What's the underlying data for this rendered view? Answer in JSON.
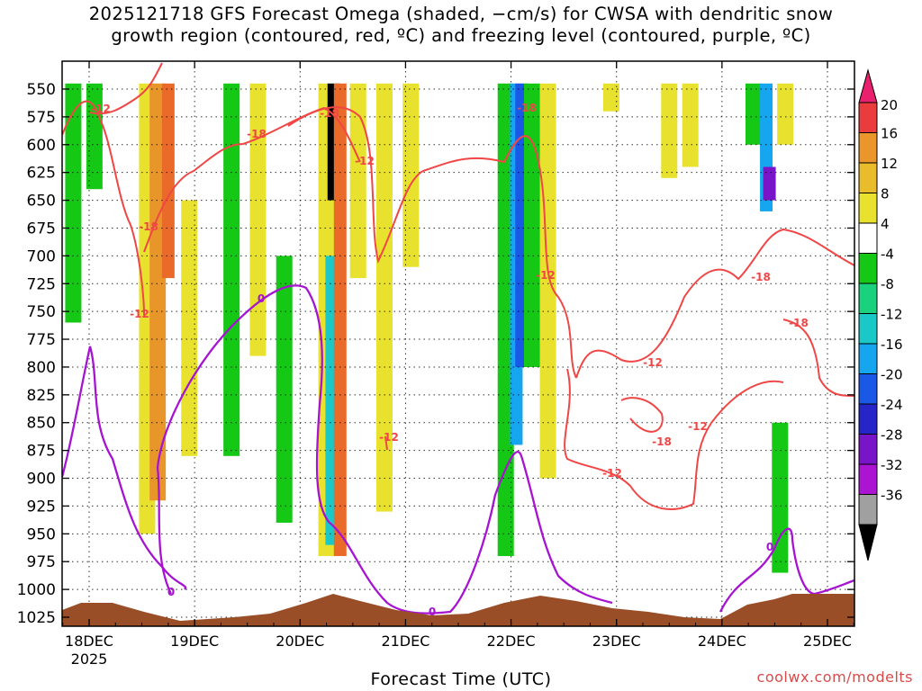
{
  "title": {
    "line1": "2025121718 GFS Forecast Omega (shaded, −cm/s) for CWSA with dendritic snow",
    "line2": "growth region (contoured, red, ºC) and freezing level (contoured, purple, ºC)"
  },
  "credit": "coolwx.com/modelts",
  "chart_data": {
    "type": "heatmap",
    "xlabel": "Forecast Time (UTC)",
    "ylabel": "",
    "y_ticks": [
      "550",
      "575",
      "600",
      "625",
      "650",
      "675",
      "700",
      "725",
      "750",
      "775",
      "800",
      "825",
      "850",
      "875",
      "900",
      "925",
      "950",
      "975",
      "1000",
      "1025"
    ],
    "y_tick_values": [
      550,
      575,
      600,
      625,
      650,
      675,
      700,
      725,
      750,
      775,
      800,
      825,
      850,
      875,
      900,
      925,
      950,
      975,
      1000,
      1025
    ],
    "ylim": [
      1035,
      540
    ],
    "y_axis_reversed": true,
    "x_ticks": [
      "18DEC",
      "19DEC",
      "20DEC",
      "21DEC",
      "22DEC",
      "23DEC",
      "24DEC",
      "25DEC"
    ],
    "x_tick_values_days": [
      0,
      1,
      2,
      3,
      4,
      5,
      6,
      7
    ],
    "x_year_label": "2025",
    "xlim_days": [
      -0.25,
      7.25
    ],
    "grid": true,
    "colorbar": {
      "labels": [
        "20",
        "16",
        "12",
        "8",
        "4",
        "-4",
        "-8",
        "-12",
        "-16",
        "-20",
        "-24",
        "-28",
        "-32",
        "-36"
      ],
      "colors": [
        "#e8e22e",
        "#e8bc2a",
        "#e8962a",
        "#ea6a2a",
        "#ea3c3c",
        "#ffffff",
        "#16c816",
        "#1ad27e",
        "#1ac8c8",
        "#16a6f0",
        "#1a58e6",
        "#2626c8",
        "#7a14c8",
        "#aa14d2"
      ],
      "top_color": "#e8206e",
      "bottom_color": "#000000",
      "gray_color": "#a0a0a0"
    },
    "contour_labels": {
      "red": [
        "-12",
        "-18",
        "-12",
        "-18",
        "-12",
        "-18",
        "-12",
        "-18",
        "-18",
        "-12",
        "-12",
        "-18",
        "-12",
        "-18",
        "-12"
      ],
      "purple": [
        "0",
        "0",
        "0",
        "0"
      ]
    },
    "shaded_regions_note": "Omega shading, -cm/s; positive values (yellow/orange) and negative (green/blue/purple) columns",
    "omega_columns": [
      {
        "day": -0.15,
        "top": 545,
        "bottom": 760,
        "value": -6
      },
      {
        "day": 0.05,
        "top": 545,
        "bottom": 640,
        "value": -6
      },
      {
        "day": 0.55,
        "top": 545,
        "bottom": 950,
        "value": 6
      },
      {
        "day": 0.65,
        "top": 545,
        "bottom": 920,
        "value": 10
      },
      {
        "day": 0.75,
        "top": 545,
        "bottom": 720,
        "value": 14
      },
      {
        "day": 0.95,
        "top": 650,
        "bottom": 880,
        "value": 6
      },
      {
        "day": 1.35,
        "top": 545,
        "bottom": 880,
        "value": -6
      },
      {
        "day": 1.6,
        "top": 545,
        "bottom": 790,
        "value": 6
      },
      {
        "day": 1.85,
        "top": 700,
        "bottom": 940,
        "value": -6
      },
      {
        "day": 2.25,
        "top": 545,
        "bottom": 970,
        "value": 6
      },
      {
        "day": 2.3,
        "top": 700,
        "bottom": 960,
        "value": -14
      },
      {
        "day": 2.32,
        "top": 545,
        "bottom": 650,
        "value": -36
      },
      {
        "day": 2.38,
        "top": 545,
        "bottom": 970,
        "value": 12
      },
      {
        "day": 2.55,
        "top": 545,
        "bottom": 720,
        "value": 6
      },
      {
        "day": 2.8,
        "top": 545,
        "bottom": 930,
        "value": 6
      },
      {
        "day": 3.05,
        "top": 545,
        "bottom": 710,
        "value": 6
      },
      {
        "day": 3.95,
        "top": 545,
        "bottom": 970,
        "value": -6
      },
      {
        "day": 4.05,
        "top": 545,
        "bottom": 870,
        "value": -16
      },
      {
        "day": 4.1,
        "top": 545,
        "bottom": 800,
        "value": -22
      },
      {
        "day": 4.2,
        "top": 545,
        "bottom": 800,
        "value": -6
      },
      {
        "day": 4.35,
        "top": 545,
        "bottom": 900,
        "value": 6
      },
      {
        "day": 4.95,
        "top": 545,
        "bottom": 570,
        "value": 6
      },
      {
        "day": 5.5,
        "top": 545,
        "bottom": 630,
        "value": 6
      },
      {
        "day": 5.7,
        "top": 545,
        "bottom": 620,
        "value": 6
      },
      {
        "day": 6.3,
        "top": 545,
        "bottom": 600,
        "value": -6
      },
      {
        "day": 6.42,
        "top": 545,
        "bottom": 660,
        "value": -18
      },
      {
        "day": 6.45,
        "top": 620,
        "bottom": 650,
        "value": -28
      },
      {
        "day": 6.6,
        "top": 545,
        "bottom": 600,
        "value": 6
      },
      {
        "day": 6.55,
        "top": 850,
        "bottom": 985,
        "value": -6
      }
    ]
  }
}
